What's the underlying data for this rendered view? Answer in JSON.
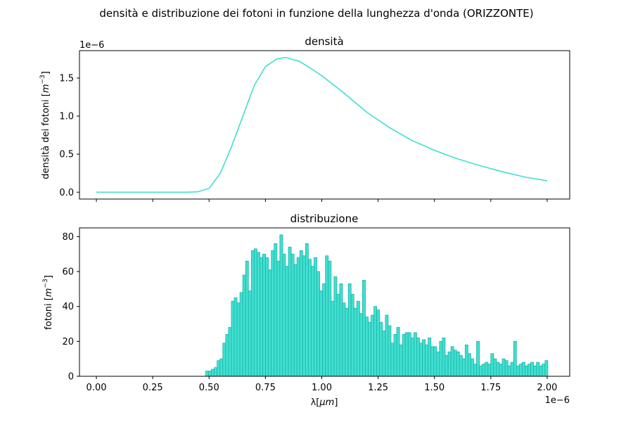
{
  "figure": {
    "suptitle": "densità e distribuzione dei fotoni in funzione della lunghezza d'onda (ORIZZONTE)"
  },
  "chart_data": [
    {
      "type": "line",
      "title": "densità",
      "xlabel": "",
      "ylabel": "densità dei fotoni [m⁻³]",
      "ylabel_main": "densità dei fotoni [",
      "ylabel_unit_base": "m",
      "ylabel_unit_exp": "−3",
      "ylabel_close": "]",
      "y_offset_label": "1e−6",
      "xlim": [
        -0.075,
        2.1
      ],
      "ylim": [
        -0.09,
        1.86
      ],
      "x_ticks": [
        0.0,
        0.25,
        0.5,
        0.75,
        1.0,
        1.25,
        1.5,
        1.75,
        2.0
      ],
      "y_ticks": [
        0.0,
        0.5,
        1.0,
        1.5
      ],
      "y_tick_labels": [
        "0.0",
        "0.5",
        "1.0",
        "1.5"
      ],
      "color": "#40e0d0",
      "grid": false,
      "series": [
        {
          "x": [
            0.0,
            0.4,
            0.45,
            0.5,
            0.55,
            0.6,
            0.65,
            0.7,
            0.75,
            0.8,
            0.84,
            0.9,
            0.95,
            1.0,
            1.1,
            1.2,
            1.3,
            1.4,
            1.5,
            1.6,
            1.7,
            1.8,
            1.9,
            2.0
          ],
          "y": [
            0.0,
            0.0,
            0.005,
            0.05,
            0.25,
            0.6,
            1.0,
            1.4,
            1.65,
            1.75,
            1.77,
            1.72,
            1.63,
            1.53,
            1.3,
            1.05,
            0.85,
            0.68,
            0.55,
            0.44,
            0.35,
            0.27,
            0.2,
            0.15
          ]
        }
      ]
    },
    {
      "type": "bar",
      "title": "distribuzione",
      "xlabel": "λ[μm]",
      "xlabel_main": "λ[",
      "xlabel_unit": "μm",
      "xlabel_close": "]",
      "x_offset_label": "1e−6",
      "ylabel": "fotoni [m⁻³]",
      "ylabel_main": "fotoni [",
      "ylabel_unit_base": "m",
      "ylabel_unit_exp": "−3",
      "ylabel_close": "]",
      "xlim": [
        -0.075,
        2.1
      ],
      "ylim": [
        0,
        85
      ],
      "x_ticks": [
        0.0,
        0.25,
        0.5,
        0.75,
        1.0,
        1.25,
        1.5,
        1.75,
        2.0
      ],
      "x_tick_labels": [
        "0.00",
        "0.25",
        "0.50",
        "0.75",
        "1.00",
        "1.25",
        "1.50",
        "1.75",
        "2.00"
      ],
      "y_ticks": [
        0,
        20,
        40,
        60,
        80
      ],
      "y_tick_labels": [
        "0",
        "20",
        "40",
        "60",
        "80"
      ],
      "color": "#40e0d0",
      "edge_color": "#20b2aa",
      "grid": false,
      "bin_start": 0.485,
      "bin_width": 0.01265,
      "values": [
        3,
        3,
        4,
        5,
        9,
        10,
        19,
        24,
        28,
        43,
        45,
        42,
        48,
        58,
        66,
        49,
        72,
        73,
        71,
        68,
        70,
        68,
        61,
        72,
        76,
        66,
        81,
        70,
        63,
        74,
        70,
        64,
        68,
        72,
        69,
        76,
        67,
        63,
        68,
        60,
        49,
        53,
        69,
        66,
        43,
        57,
        47,
        53,
        42,
        39,
        53,
        47,
        39,
        43,
        36,
        55,
        34,
        31,
        35,
        40,
        38,
        31,
        26,
        35,
        29,
        19,
        24,
        28,
        18,
        24,
        25,
        25,
        22,
        25,
        22,
        19,
        21,
        18,
        22,
        17,
        17,
        14,
        20,
        22,
        12,
        14,
        17,
        15,
        14,
        12,
        10,
        18,
        13,
        10,
        7,
        20,
        6,
        7,
        8,
        7,
        13,
        10,
        8,
        7,
        10,
        9,
        6,
        8,
        20,
        6,
        7,
        8,
        6,
        7,
        8,
        6,
        8,
        6,
        7,
        9
      ]
    }
  ]
}
